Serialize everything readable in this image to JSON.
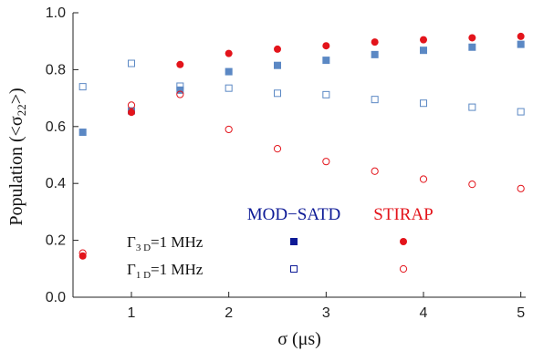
{
  "chart_data": {
    "type": "scatter",
    "x_label": "σ (μs)",
    "y_label": "Population (<σ22>)",
    "xlim": [
      0.4,
      5.05
    ],
    "ylim": [
      0.0,
      1.0
    ],
    "x_ticks": [
      1,
      2,
      3,
      4,
      5
    ],
    "y_ticks": [
      0.0,
      0.2,
      0.4,
      0.6,
      0.8,
      1.0
    ],
    "x_tick_labels": [
      "1",
      "2",
      "3",
      "4",
      "5"
    ],
    "y_tick_labels": [
      "0.0",
      "0.2",
      "0.4",
      "0.6",
      "0.8",
      "1.0"
    ],
    "grid": false,
    "x": [
      0.5,
      1.0,
      1.5,
      2.0,
      2.5,
      3.0,
      3.5,
      4.0,
      4.5,
      5.0
    ],
    "series": [
      {
        "group": "MOD-SATD",
        "gamma": "Γ3D=1 MHz",
        "marker": "filled-square",
        "color": "#5b88c4",
        "values": [
          0.58,
          0.655,
          0.728,
          0.793,
          0.815,
          0.833,
          0.853,
          0.868,
          0.879,
          0.889
        ]
      },
      {
        "group": "MOD-SATD",
        "gamma": "Γ1D=1 MHz",
        "marker": "open-square",
        "color": "#5b88c4",
        "values": [
          0.74,
          0.822,
          0.742,
          0.735,
          0.717,
          0.712,
          0.695,
          0.682,
          0.668,
          0.652
        ]
      },
      {
        "group": "STIRAP",
        "gamma": "Γ3D=1 MHz",
        "marker": "filled-circle",
        "color": "#e3141b",
        "values": [
          0.145,
          0.65,
          0.818,
          0.857,
          0.872,
          0.884,
          0.897,
          0.905,
          0.912,
          0.917
        ]
      },
      {
        "group": "STIRAP",
        "gamma": "Γ1D=1 MHz",
        "marker": "open-circle",
        "color": "#e3141b",
        "values": [
          0.155,
          0.675,
          0.713,
          0.59,
          0.522,
          0.477,
          0.443,
          0.415,
          0.397,
          0.382
        ]
      }
    ],
    "legend": {
      "placement": "bottom-right",
      "columns": [
        {
          "label": "MOD−SATD",
          "color": "#0d1a96"
        },
        {
          "label": "STIRAP",
          "color": "#e3141b"
        }
      ],
      "rows": [
        {
          "label_base": "Γ",
          "label_sub": "3 D",
          "label_tail": "=1 MHz",
          "markers": [
            {
              "shape": "filled-square",
              "color": "#0d1a96"
            },
            {
              "shape": "filled-circle",
              "color": "#e3141b"
            }
          ]
        },
        {
          "label_base": "Γ",
          "label_sub": "1 D",
          "label_tail": "=1 MHz",
          "markers": [
            {
              "shape": "open-square",
              "color": "#0d1a96"
            },
            {
              "shape": "open-circle",
              "color": "#e3141b"
            }
          ]
        }
      ]
    }
  },
  "colors": {
    "axis": "#222222",
    "satd": "#5b88c4",
    "stirap": "#e3141b"
  }
}
